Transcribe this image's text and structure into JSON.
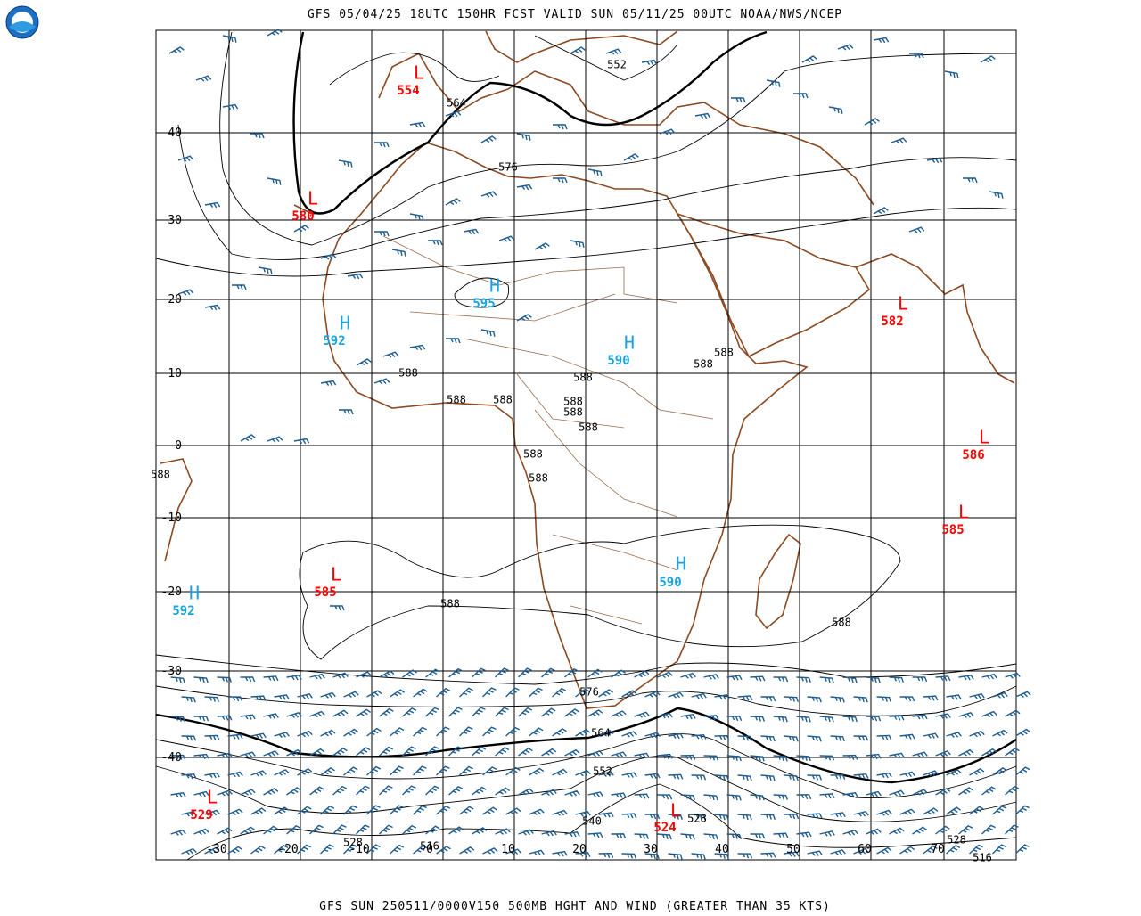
{
  "header": {
    "title": "GFS 05/04/25 18UTC 150HR FCST VALID SUN 05/11/25 00UTC NOAA/NWS/NCEP"
  },
  "footer": {
    "title": "GFS SUN 250511/0000V150 500MB HGHT AND WIND (GREATER THAN 35 KTS)"
  },
  "lat_labels": [
    40,
    30,
    20,
    10,
    0,
    -10,
    -20,
    -30,
    -40
  ],
  "lon_labels": [
    -30,
    -20,
    -10,
    0,
    10,
    20,
    30,
    40,
    50,
    60,
    70
  ],
  "pressure_centers": [
    {
      "type": "L",
      "value": 554
    },
    {
      "type": "L",
      "value": 580
    },
    {
      "type": "H",
      "value": 595
    },
    {
      "type": "H",
      "value": 592
    },
    {
      "type": "H",
      "value": 590
    },
    {
      "type": "L",
      "value": 582
    },
    {
      "type": "L",
      "value": 586
    },
    {
      "type": "L",
      "value": 585
    },
    {
      "type": "L",
      "value": 585
    },
    {
      "type": "H",
      "value": 590
    },
    {
      "type": "H",
      "value": 592
    },
    {
      "type": "L",
      "value": 529
    },
    {
      "type": "L",
      "value": 524
    }
  ],
  "contour_labels": [
    552,
    564,
    576,
    588,
    588,
    588,
    588,
    588,
    588,
    588,
    588,
    588,
    588,
    588,
    588,
    588,
    588,
    576,
    564,
    552,
    540,
    528,
    528,
    516,
    528,
    516
  ]
}
